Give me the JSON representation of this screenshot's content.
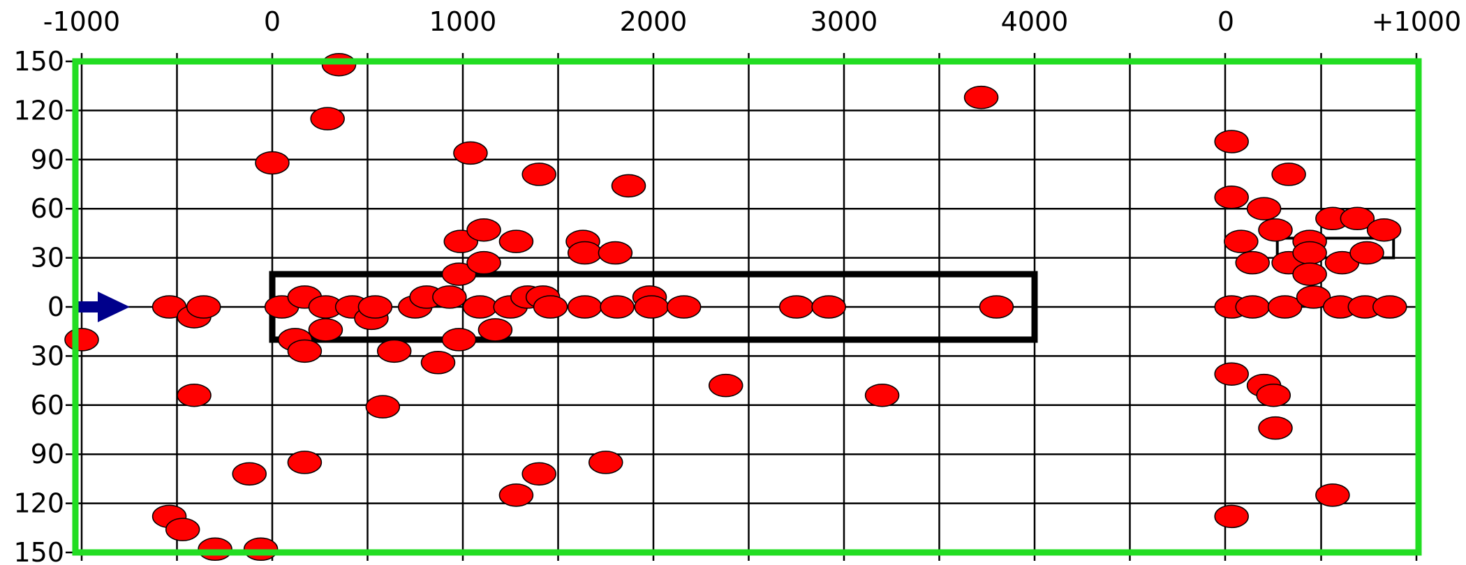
{
  "chart_data": {
    "type": "scatter",
    "title": "",
    "xlabel": "",
    "ylabel": "",
    "grid": true,
    "x_tick_labels": [
      "-1000",
      "0",
      "1000",
      "2000",
      "3000",
      "4000",
      "0",
      "+1000"
    ],
    "y_tick_labels": [
      "150",
      "120",
      "90",
      "60",
      "30",
      "0",
      "30",
      "60",
      "90",
      "120",
      "150"
    ],
    "x_segments": [
      {
        "name": "main",
        "xlim": [
          -1000,
          5000
        ]
      },
      {
        "name": "exit",
        "xlim": [
          0,
          1000
        ]
      }
    ],
    "ylim": [
      -150,
      150
    ],
    "colors": {
      "points": "#ff0000",
      "point_outline": "#000000",
      "frame": "#22dd22",
      "grid": "#000000",
      "arrow": "#00008b"
    },
    "annotations": {
      "arrow_icon": "right-arrow-icon",
      "rectangle_main": {
        "x": [
          0,
          4000
        ],
        "y": [
          -20,
          20
        ]
      },
      "rectangle_exit_sign": {
        "segment": "exit",
        "x": [
          270,
          880
        ],
        "y": [
          30,
          42
        ]
      }
    },
    "points": [
      {
        "seg": 0,
        "x": -1000,
        "y": -20
      },
      {
        "seg": 0,
        "x": -540,
        "y": 0
      },
      {
        "seg": 0,
        "x": -410,
        "y": -6
      },
      {
        "seg": 0,
        "x": -360,
        "y": 0
      },
      {
        "seg": 0,
        "x": -410,
        "y": -54
      },
      {
        "seg": 0,
        "x": -540,
        "y": -128
      },
      {
        "seg": 0,
        "x": -470,
        "y": -136
      },
      {
        "seg": 0,
        "x": -300,
        "y": -148
      },
      {
        "seg": 0,
        "x": -120,
        "y": -102
      },
      {
        "seg": 0,
        "x": -60,
        "y": -148
      },
      {
        "seg": 0,
        "x": 0,
        "y": 88
      },
      {
        "seg": 0,
        "x": 350,
        "y": 148
      },
      {
        "seg": 0,
        "x": 290,
        "y": 115
      },
      {
        "seg": 0,
        "x": 50,
        "y": 0
      },
      {
        "seg": 0,
        "x": 170,
        "y": 6
      },
      {
        "seg": 0,
        "x": 280,
        "y": 0
      },
      {
        "seg": 0,
        "x": 420,
        "y": 0
      },
      {
        "seg": 0,
        "x": 520,
        "y": -7
      },
      {
        "seg": 0,
        "x": 540,
        "y": 0
      },
      {
        "seg": 0,
        "x": 120,
        "y": -20
      },
      {
        "seg": 0,
        "x": 170,
        "y": -27
      },
      {
        "seg": 0,
        "x": 280,
        "y": -14
      },
      {
        "seg": 0,
        "x": 640,
        "y": -27
      },
      {
        "seg": 0,
        "x": 580,
        "y": -61
      },
      {
        "seg": 0,
        "x": 170,
        "y": -95
      },
      {
        "seg": 0,
        "x": 750,
        "y": 0
      },
      {
        "seg": 0,
        "x": 810,
        "y": 6
      },
      {
        "seg": 0,
        "x": 930,
        "y": 6
      },
      {
        "seg": 0,
        "x": 980,
        "y": 20
      },
      {
        "seg": 0,
        "x": 990,
        "y": 40
      },
      {
        "seg": 0,
        "x": 1110,
        "y": 47
      },
      {
        "seg": 0,
        "x": 1110,
        "y": 27
      },
      {
        "seg": 0,
        "x": 1040,
        "y": 94
      },
      {
        "seg": 0,
        "x": 1090,
        "y": 0
      },
      {
        "seg": 0,
        "x": 1170,
        "y": -14
      },
      {
        "seg": 0,
        "x": 1250,
        "y": 0
      },
      {
        "seg": 0,
        "x": 1280,
        "y": 40
      },
      {
        "seg": 0,
        "x": 1400,
        "y": 81
      },
      {
        "seg": 0,
        "x": 980,
        "y": -20
      },
      {
        "seg": 0,
        "x": 870,
        "y": -34
      },
      {
        "seg": 0,
        "x": 1340,
        "y": 6
      },
      {
        "seg": 0,
        "x": 1420,
        "y": 6
      },
      {
        "seg": 0,
        "x": 1460,
        "y": 0
      },
      {
        "seg": 0,
        "x": 1630,
        "y": 40
      },
      {
        "seg": 0,
        "x": 1640,
        "y": 33
      },
      {
        "seg": 0,
        "x": 1800,
        "y": 33
      },
      {
        "seg": 0,
        "x": 1870,
        "y": 74
      },
      {
        "seg": 0,
        "x": 1640,
        "y": 0
      },
      {
        "seg": 0,
        "x": 1810,
        "y": 0
      },
      {
        "seg": 0,
        "x": 1980,
        "y": 6
      },
      {
        "seg": 0,
        "x": 1990,
        "y": 0
      },
      {
        "seg": 0,
        "x": 2160,
        "y": 0
      },
      {
        "seg": 0,
        "x": 1400,
        "y": -102
      },
      {
        "seg": 0,
        "x": 1280,
        "y": -115
      },
      {
        "seg": 0,
        "x": 1750,
        "y": -95
      },
      {
        "seg": 0,
        "x": 2380,
        "y": -48
      },
      {
        "seg": 0,
        "x": 2750,
        "y": 0
      },
      {
        "seg": 0,
        "x": 2920,
        "y": 0
      },
      {
        "seg": 0,
        "x": 3200,
        "y": -54
      },
      {
        "seg": 0,
        "x": 3720,
        "y": 128
      },
      {
        "seg": 0,
        "x": 3800,
        "y": 0
      },
      {
        "seg": 1,
        "x": 30,
        "y": 101
      },
      {
        "seg": 1,
        "x": 30,
        "y": 67
      },
      {
        "seg": 1,
        "x": 80,
        "y": 40
      },
      {
        "seg": 1,
        "x": 140,
        "y": 27
      },
      {
        "seg": 1,
        "x": 200,
        "y": 60
      },
      {
        "seg": 1,
        "x": 260,
        "y": 47
      },
      {
        "seg": 1,
        "x": 330,
        "y": 81
      },
      {
        "seg": 1,
        "x": 30,
        "y": 0
      },
      {
        "seg": 1,
        "x": 140,
        "y": 0
      },
      {
        "seg": 1,
        "x": 310,
        "y": 0
      },
      {
        "seg": 1,
        "x": 330,
        "y": 27
      },
      {
        "seg": 1,
        "x": 440,
        "y": 40
      },
      {
        "seg": 1,
        "x": 440,
        "y": 33
      },
      {
        "seg": 1,
        "x": 440,
        "y": 20
      },
      {
        "seg": 1,
        "x": 460,
        "y": 6
      },
      {
        "seg": 1,
        "x": 560,
        "y": 54
      },
      {
        "seg": 1,
        "x": 610,
        "y": 27
      },
      {
        "seg": 1,
        "x": 690,
        "y": 54
      },
      {
        "seg": 1,
        "x": 740,
        "y": 33
      },
      {
        "seg": 1,
        "x": 830,
        "y": 47
      },
      {
        "seg": 1,
        "x": 600,
        "y": 0
      },
      {
        "seg": 1,
        "x": 730,
        "y": 0
      },
      {
        "seg": 1,
        "x": 860,
        "y": 0
      },
      {
        "seg": 1,
        "x": 30,
        "y": -41
      },
      {
        "seg": 1,
        "x": 200,
        "y": -48
      },
      {
        "seg": 1,
        "x": 250,
        "y": -54
      },
      {
        "seg": 1,
        "x": 260,
        "y": -74
      },
      {
        "seg": 1,
        "x": 560,
        "y": -115
      },
      {
        "seg": 1,
        "x": 30,
        "y": -128
      }
    ]
  }
}
